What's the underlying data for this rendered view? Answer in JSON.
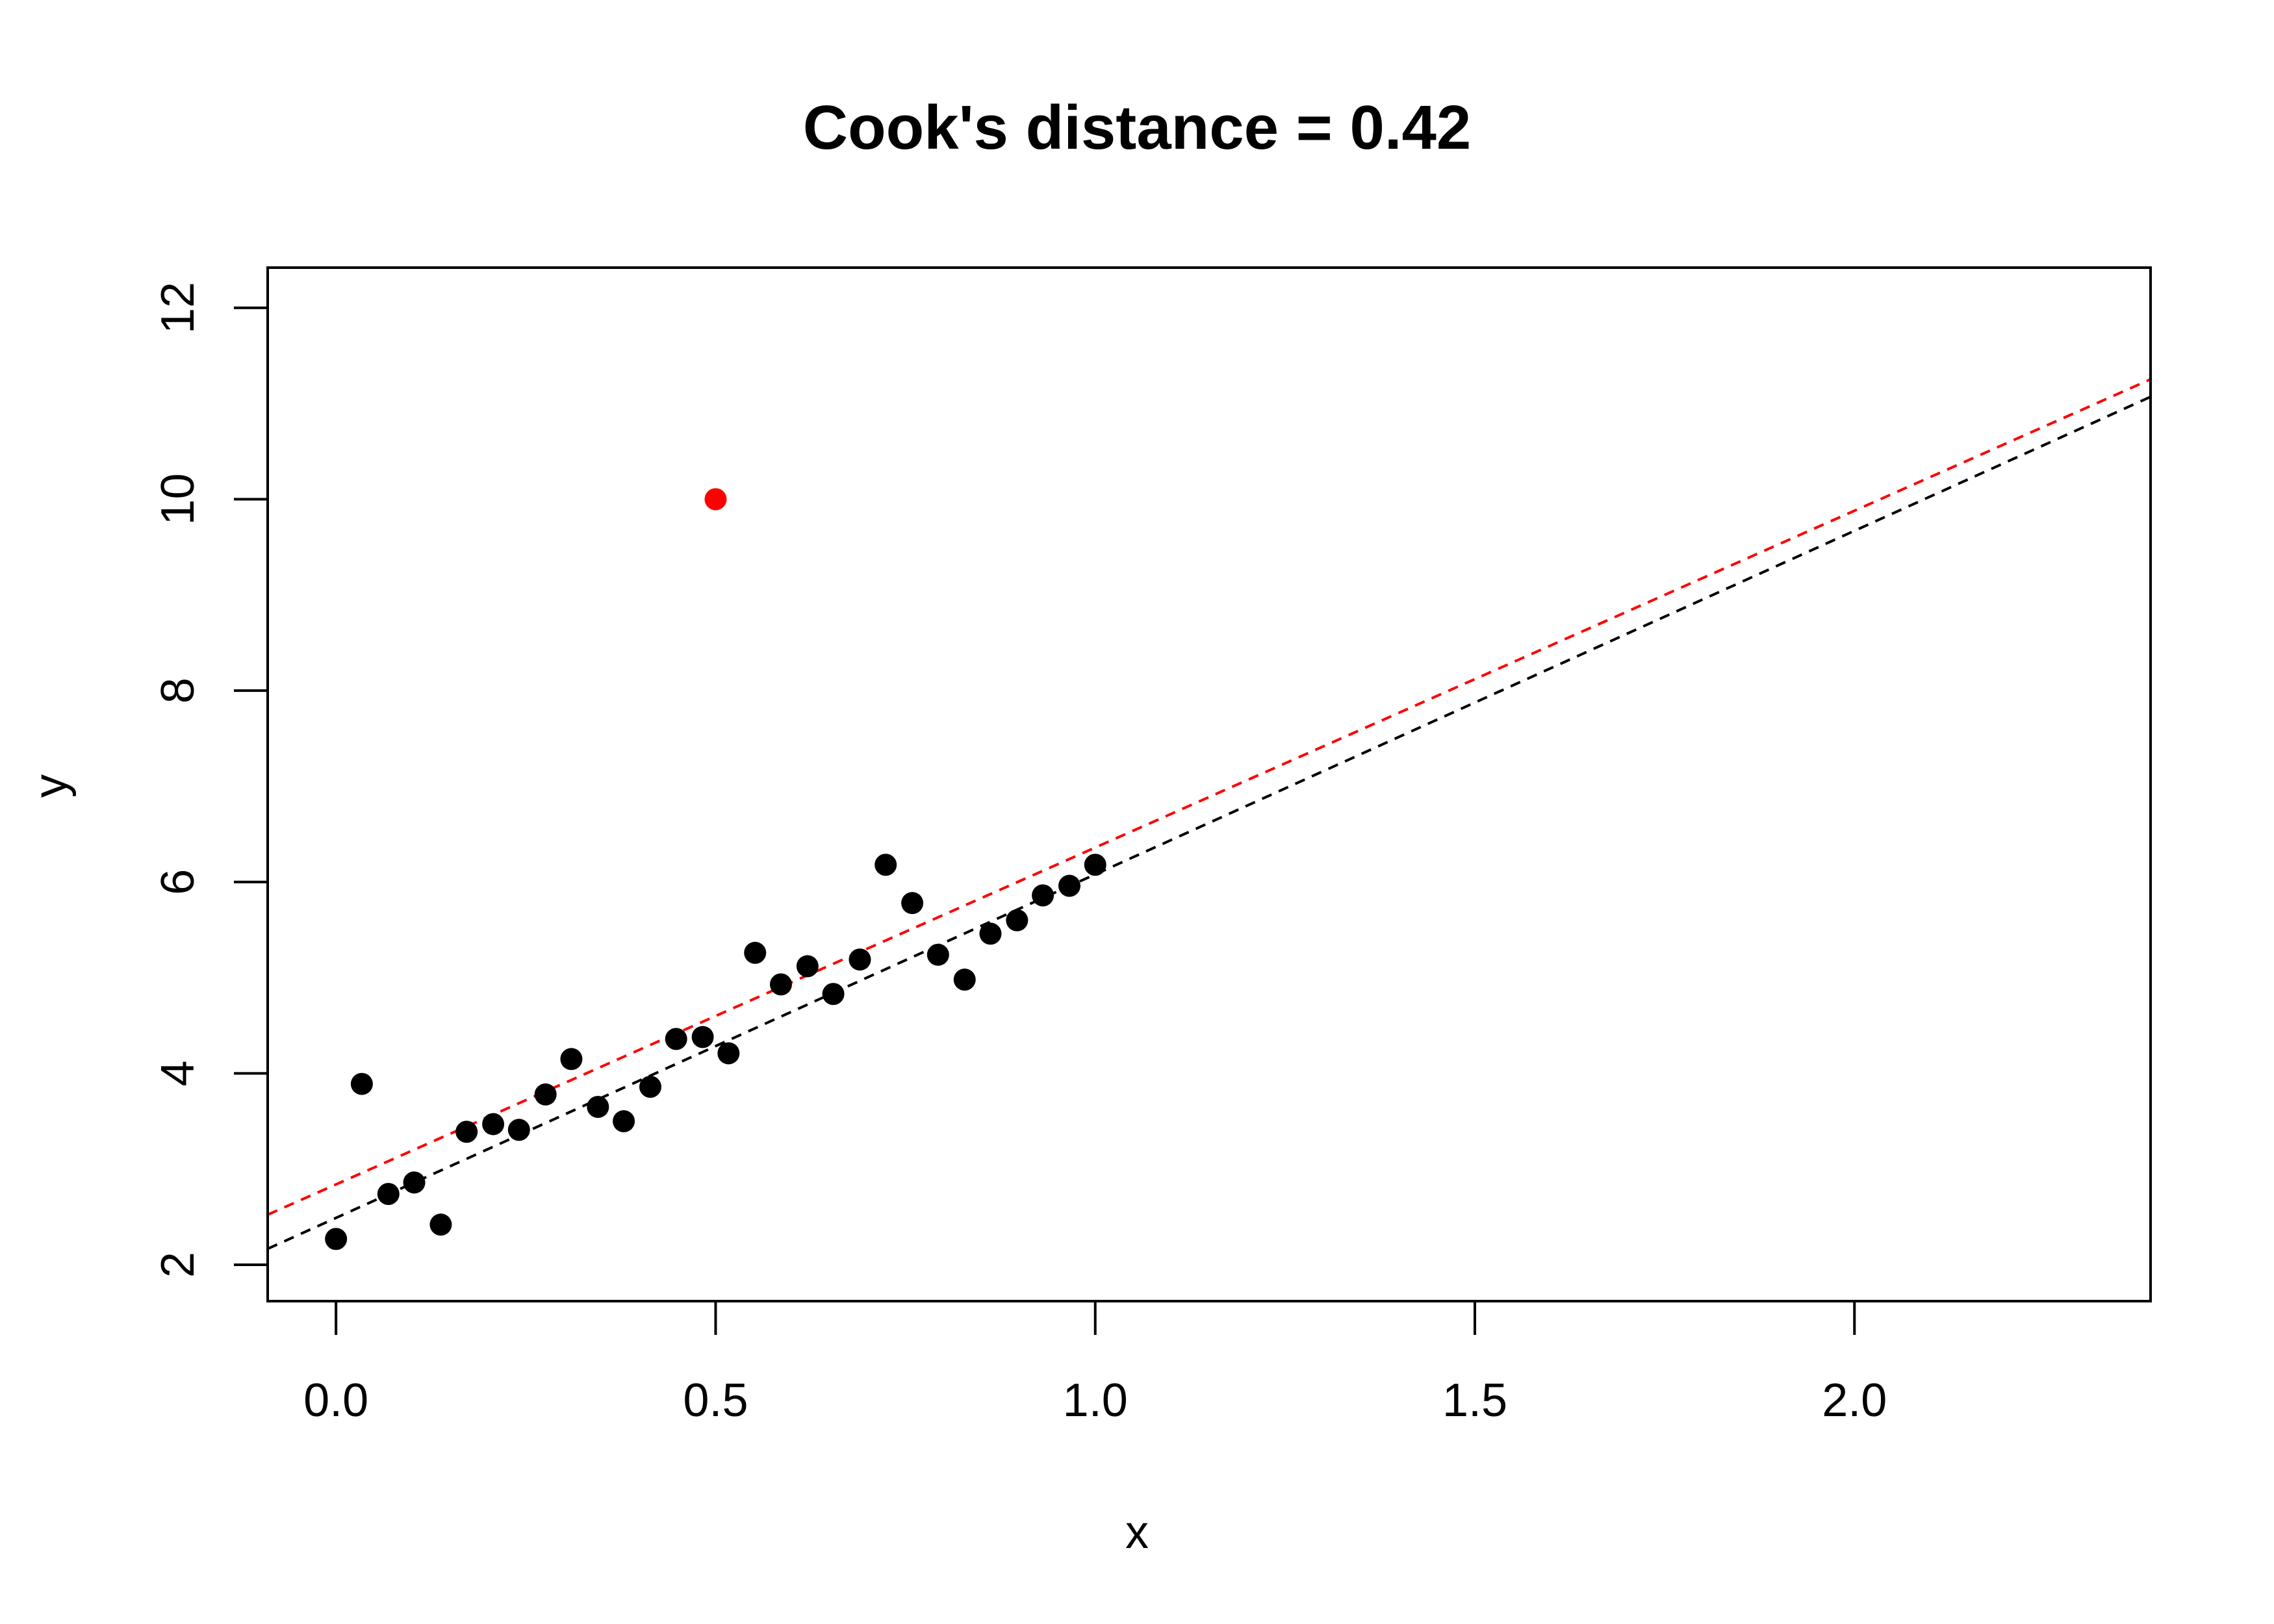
{
  "chart_data": {
    "type": "scatter",
    "title": "Cook's distance = 0.42",
    "xlabel": "x",
    "ylabel": "y",
    "xlim": [
      -0.09,
      2.39
    ],
    "ylim": [
      1.62,
      12.42
    ],
    "x_ticks": [
      0.0,
      0.5,
      1.0,
      1.5,
      2.0
    ],
    "x_tick_labels": [
      "0.0",
      "0.5",
      "1.0",
      "1.5",
      "2.0"
    ],
    "y_ticks": [
      2,
      4,
      6,
      8,
      10,
      12
    ],
    "y_tick_labels": [
      "2",
      "4",
      "6",
      "8",
      "10",
      "12"
    ],
    "grid": false,
    "series": [
      {
        "color": "#000000",
        "points": [
          {
            "x": 0.0,
            "y": 2.27
          },
          {
            "x": 0.034,
            "y": 3.89
          },
          {
            "x": 0.069,
            "y": 2.74
          },
          {
            "x": 0.103,
            "y": 2.86
          },
          {
            "x": 0.138,
            "y": 2.42
          },
          {
            "x": 0.172,
            "y": 3.39
          },
          {
            "x": 0.207,
            "y": 3.47
          },
          {
            "x": 0.241,
            "y": 3.41
          },
          {
            "x": 0.276,
            "y": 3.78
          },
          {
            "x": 0.31,
            "y": 4.15
          },
          {
            "x": 0.345,
            "y": 3.65
          },
          {
            "x": 0.379,
            "y": 3.5
          },
          {
            "x": 0.414,
            "y": 3.86
          },
          {
            "x": 0.448,
            "y": 4.36
          },
          {
            "x": 0.483,
            "y": 4.38
          },
          {
            "x": 0.517,
            "y": 4.21
          },
          {
            "x": 0.552,
            "y": 5.26
          },
          {
            "x": 0.586,
            "y": 4.93
          },
          {
            "x": 0.621,
            "y": 5.12
          },
          {
            "x": 0.655,
            "y": 4.83
          },
          {
            "x": 0.69,
            "y": 5.19
          },
          {
            "x": 0.724,
            "y": 6.18
          },
          {
            "x": 0.759,
            "y": 5.78
          },
          {
            "x": 0.793,
            "y": 5.24
          },
          {
            "x": 0.828,
            "y": 4.98
          },
          {
            "x": 0.862,
            "y": 5.46
          },
          {
            "x": 0.897,
            "y": 5.6
          },
          {
            "x": 0.931,
            "y": 5.86
          },
          {
            "x": 0.966,
            "y": 5.96
          },
          {
            "x": 1.0,
            "y": 6.18
          }
        ]
      },
      {
        "color": "#ff0000",
        "points": [
          {
            "x": 0.5,
            "y": 10.0
          }
        ]
      }
    ],
    "lines": [
      {
        "style": "dashed",
        "color": "#000000",
        "intercept": 2.49,
        "slope": 3.59
      },
      {
        "style": "dashed",
        "color": "#ff0000",
        "intercept": 2.84,
        "slope": 3.52
      }
    ]
  }
}
